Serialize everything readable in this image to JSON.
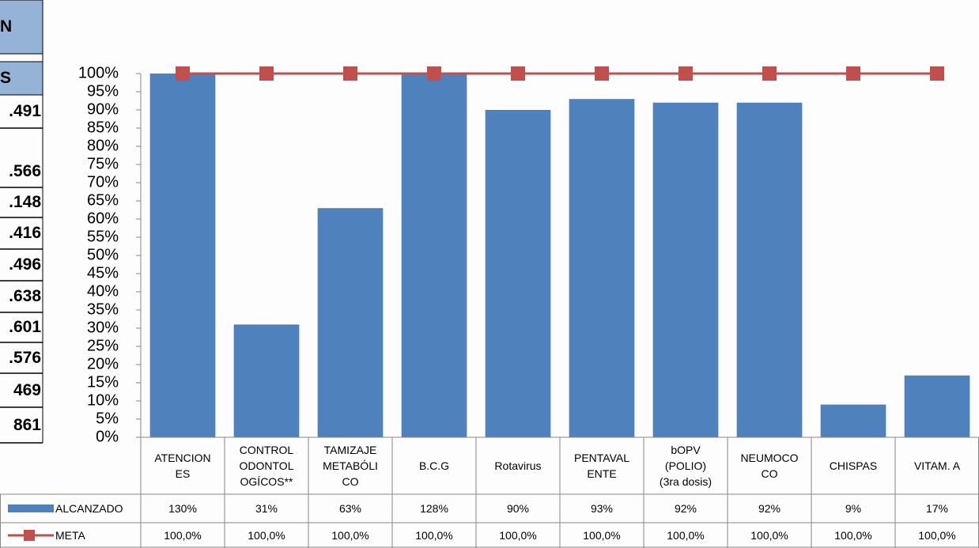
{
  "side_table": {
    "header": [
      "N",
      "S"
    ],
    "rows": [
      ".491",
      ".566",
      ".148",
      ".416",
      ".496",
      ".638",
      ".601",
      ".576",
      "469",
      "861"
    ]
  },
  "chart_data": {
    "type": "bar",
    "categories": [
      "ATENCION\nES",
      "CONTROL\nODONTOL\nOGÍCOS**",
      "TAMIZAJE\nMETABÓLI\nCO",
      "B.C.G",
      "Rotavirus",
      "PENTAVAL\nENTE",
      "bOPV\n(POLIO)\n(3ra dosis)",
      "NEUMOCO\nCO",
      "CHISPAS",
      "VITAM. A"
    ],
    "series": [
      {
        "name": "ALCANZADO",
        "type": "bar",
        "color": "#4f81bd",
        "values": [
          130,
          31,
          63,
          128,
          90,
          93,
          92,
          92,
          9,
          17
        ],
        "value_labels": [
          "130%",
          "31%",
          "63%",
          "128%",
          "90%",
          "93%",
          "92%",
          "92%",
          "9%",
          "17%"
        ]
      },
      {
        "name": "META",
        "type": "line",
        "color": "#c0504d",
        "values": [
          100,
          100,
          100,
          100,
          100,
          100,
          100,
          100,
          100,
          100
        ],
        "value_labels": [
          "100,0%",
          "100,0%",
          "100,0%",
          "100,0%",
          "100,0%",
          "100,0%",
          "100,0%",
          "100,0%",
          "100,0%",
          "100,0%"
        ]
      }
    ],
    "ylim": [
      0,
      100
    ],
    "yticks": [
      {
        "value": 0,
        "label": "0%"
      },
      {
        "value": 5,
        "label": "5%"
      },
      {
        "value": 10,
        "label": "10%"
      },
      {
        "value": 15,
        "label": "15%"
      },
      {
        "value": 20,
        "label": "20%"
      },
      {
        "value": 25,
        "label": "25%"
      },
      {
        "value": 30,
        "label": "30%"
      },
      {
        "value": 35,
        "label": "35%"
      },
      {
        "value": 40,
        "label": "40%"
      },
      {
        "value": 45,
        "label": "45%"
      },
      {
        "value": 50,
        "label": "50%"
      },
      {
        "value": 55,
        "label": "55%"
      },
      {
        "value": 60,
        "label": "60%"
      },
      {
        "value": 65,
        "label": "65%"
      },
      {
        "value": 70,
        "label": "70%"
      },
      {
        "value": 75,
        "label": "75%"
      },
      {
        "value": 80,
        "label": "80%"
      },
      {
        "value": 85,
        "label": "85%"
      },
      {
        "value": 90,
        "label": "90%"
      },
      {
        "value": 95,
        "label": "95%"
      },
      {
        "value": 100,
        "label": "100%"
      }
    ],
    "data_table": true
  }
}
